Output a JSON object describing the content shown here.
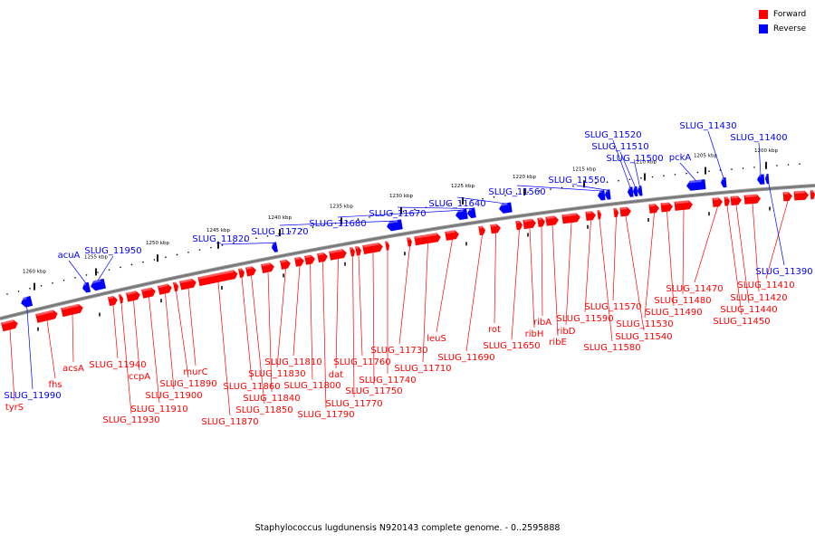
{
  "legend": {
    "forward": {
      "label": "Forward",
      "color": "#ff0000"
    },
    "reverse": {
      "label": "Reverse",
      "color": "#0000ff"
    }
  },
  "caption": {
    "organism": "Staphylococcus lugdunensis N920143 complete genome.",
    "range": "0..2595888"
  },
  "colors": {
    "forward": "#ff0000",
    "reverse": "#0000ff",
    "backbone": "#777777"
  },
  "ruler": {
    "unit": "kbp",
    "labels": [
      "1260 kbp",
      "1255 kbp",
      "1250 kbp",
      "1245 kbp",
      "1240 kbp",
      "1235 kbp",
      "1230 kbp",
      "1225 kbp",
      "1220 kbp",
      "1215 kbp",
      "1210 kbp",
      "1205 kbp",
      "1200 kbp"
    ]
  },
  "genes": {
    "forward": [
      "tyrS",
      "fhs",
      "acsA",
      "SLUG_11940",
      "SLUG_11930",
      "ccpA",
      "SLUG_11910",
      "SLUG_11900",
      "SLUG_11890",
      "murC",
      "SLUG_11870",
      "SLUG_11860",
      "SLUG_11850",
      "SLUG_11840",
      "SLUG_11830",
      "SLUG_11810",
      "SLUG_11800",
      "SLUG_11790",
      "dat",
      "SLUG_11770",
      "SLUG_11760",
      "SLUG_11750",
      "SLUG_11740",
      "SLUG_11730",
      "SLUG_11710",
      "leuS",
      "SLUG_11690",
      "rot",
      "SLUG_11650",
      "ribH",
      "ribA",
      "ribE",
      "ribD",
      "SLUG_11590",
      "SLUG_11580",
      "SLUG_11570",
      "SLUG_11540",
      "SLUG_11530",
      "SLUG_11490",
      "SLUG_11480",
      "SLUG_11470",
      "SLUG_11450",
      "SLUG_11440",
      "SLUG_11420",
      "SLUG_11410"
    ],
    "reverse": [
      "SLUG_11990",
      "acuA",
      "SLUG_11950",
      "SLUG_11820",
      "SLUG_11720",
      "SLUG_11680",
      "SLUG_11670",
      "SLUG_11640",
      "SLUG_11560",
      "SLUG_11550",
      "SLUG_11520",
      "SLUG_11510",
      "SLUG_11500",
      "pckA",
      "SLUG_11430",
      "SLUG_11400",
      "SLUG_11390"
    ]
  }
}
